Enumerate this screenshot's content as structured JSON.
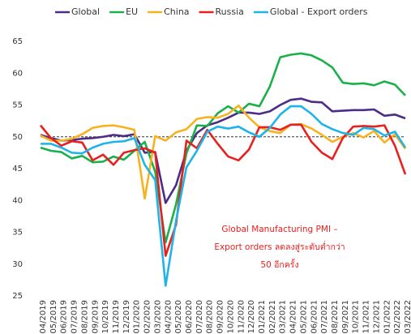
{
  "chart_data": {
    "type": "line",
    "categories": [
      "04/2019",
      "05/2019",
      "06/2019",
      "07/2019",
      "08/2019",
      "09/2019",
      "10/2019",
      "11/2019",
      "12/2019",
      "01/2020",
      "02/2020",
      "03/2020",
      "04/2020",
      "05/2020",
      "06/2020",
      "07/2020",
      "08/2020",
      "09/2020",
      "10/2020",
      "11/2020",
      "12/2020",
      "01/2021",
      "02/2021",
      "03/2021",
      "04/2021",
      "05/2021",
      "06/2021",
      "07/2021",
      "08/2021",
      "09/2021",
      "10/2021",
      "11/2021",
      "12/2021",
      "01/2022",
      "02/2022",
      "03/2022"
    ],
    "series": [
      {
        "name": "Global",
        "color": "#4b2c87",
        "values": [
          50.3,
          49.8,
          49.4,
          49.5,
          49.7,
          49.8,
          50.0,
          50.3,
          50.1,
          50.4,
          47.5,
          47.6,
          39.6,
          42.4,
          47.8,
          50.6,
          51.8,
          52.3,
          53.0,
          53.8,
          53.8,
          53.6,
          54.0,
          55.0,
          55.8,
          56.0,
          55.5,
          55.4,
          54.0,
          54.1,
          54.2,
          54.2,
          54.3,
          53.3,
          53.5,
          52.9
        ]
      },
      {
        "name": "EU",
        "color": "#1ab04a",
        "values": [
          48.3,
          47.8,
          47.6,
          46.6,
          47.0,
          46.0,
          46.1,
          46.9,
          46.4,
          47.8,
          49.2,
          44.5,
          33.4,
          39.4,
          47.4,
          51.8,
          51.7,
          53.7,
          54.8,
          53.8,
          55.2,
          54.8,
          57.9,
          62.5,
          62.9,
          63.1,
          62.8,
          62.0,
          60.9,
          58.5,
          58.3,
          58.4,
          58.1,
          58.7,
          58.2,
          56.5
        ]
      },
      {
        "name": "China",
        "color": "#f7b21e",
        "values": [
          50.2,
          49.4,
          49.4,
          49.7,
          50.4,
          51.4,
          51.7,
          51.8,
          51.5,
          51.1,
          40.3,
          50.1,
          49.4,
          50.7,
          51.2,
          52.8,
          53.1,
          53.0,
          53.6,
          54.9,
          53.0,
          51.5,
          50.9,
          50.6,
          51.9,
          52.0,
          51.3,
          50.3,
          49.2,
          50.0,
          50.6,
          49.9,
          50.9,
          49.1,
          50.4,
          48.1
        ]
      },
      {
        "name": "Russia",
        "color": "#e8201e",
        "values": [
          51.8,
          49.8,
          48.6,
          49.3,
          49.1,
          46.3,
          47.2,
          45.6,
          47.5,
          47.9,
          48.2,
          47.5,
          31.3,
          36.2,
          49.4,
          48.2,
          51.1,
          48.9,
          46.9,
          46.3,
          48.0,
          51.5,
          51.5,
          51.1,
          51.9,
          51.9,
          49.2,
          47.5,
          46.5,
          49.8,
          51.6,
          51.7,
          51.6,
          51.8,
          48.6,
          44.1
        ]
      },
      {
        "name": "Global - Export orders",
        "color": "#1fb4e8",
        "values": [
          48.9,
          48.9,
          48.3,
          47.5,
          47.4,
          48.3,
          48.9,
          49.2,
          49.3,
          49.8,
          45.6,
          43.2,
          26.6,
          36.8,
          45.2,
          47.8,
          50.8,
          51.6,
          51.3,
          51.6,
          50.7,
          50.0,
          51.4,
          53.5,
          54.8,
          54.8,
          53.6,
          52.0,
          51.2,
          50.6,
          50.3,
          51.4,
          51.2,
          50.2,
          50.8,
          48.3
        ]
      }
    ],
    "ylim": [
      25,
      65
    ],
    "yticks": [
      25,
      30,
      35,
      40,
      45,
      50,
      55,
      60,
      65
    ],
    "reference_line": 50,
    "annotation": [
      "Global Manufacturing PMI –",
      "Export orders ลดลงสู่ระดับต่ำกว่า",
      "50 อีกครั้ง"
    ],
    "legend": "top"
  }
}
